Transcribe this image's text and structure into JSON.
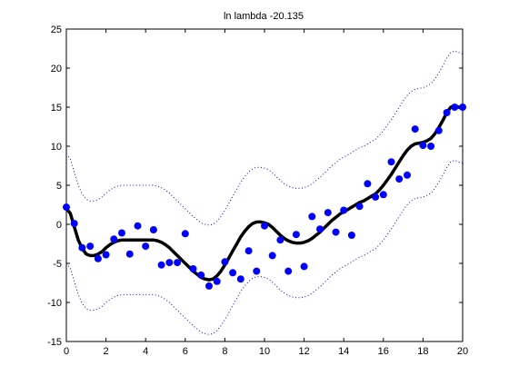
{
  "chart_data": {
    "type": "scatter",
    "title": "ln lambda -20.135",
    "xlabel": "",
    "ylabel": "",
    "xlim": [
      0,
      20
    ],
    "ylim": [
      -15,
      25
    ],
    "xticks": [
      0,
      2,
      4,
      6,
      8,
      10,
      12,
      14,
      16,
      18,
      20
    ],
    "yticks": [
      -15,
      -10,
      -5,
      0,
      5,
      10,
      15,
      20,
      25
    ],
    "grid": false,
    "legend": "none",
    "colors": {
      "points": "#0000ff",
      "fit": "#000000",
      "band": "#0000ff",
      "axes": "#000000",
      "background": "#ffffff"
    },
    "series": [
      {
        "kind": "points",
        "x": [
          0.0,
          0.4,
          0.8,
          1.2,
          1.6,
          2.0,
          2.4,
          2.8,
          3.2,
          3.6,
          4.0,
          4.4,
          4.8,
          5.2,
          5.6,
          6.0,
          6.4,
          6.8,
          7.2,
          7.6,
          8.0,
          8.4,
          8.8,
          9.2,
          9.6,
          10.0,
          10.4,
          10.8,
          11.2,
          11.6,
          12.0,
          12.4,
          12.8,
          13.2,
          13.6,
          14.0,
          14.4,
          14.8,
          15.2,
          15.6,
          16.0,
          16.4,
          16.8,
          17.2,
          17.6,
          18.0,
          18.4,
          18.8,
          19.2,
          19.6,
          20.0
        ],
        "y": [
          2.2,
          0.1,
          -3.0,
          -2.8,
          -4.4,
          -3.9,
          -1.9,
          -1.1,
          -3.8,
          -0.2,
          -2.8,
          -0.7,
          -5.2,
          -4.9,
          -4.9,
          -1.2,
          -5.7,
          -6.5,
          -7.9,
          -7.3,
          -4.8,
          -6.2,
          -7.0,
          -3.4,
          -6.0,
          -0.2,
          -4.0,
          -2.0,
          -6.0,
          -1.3,
          -5.4,
          1.0,
          -0.6,
          1.5,
          -1.0,
          1.8,
          -1.4,
          2.3,
          5.2,
          3.5,
          3.8,
          8.0,
          5.8,
          6.3,
          12.2,
          10.1,
          10.0,
          12.0,
          14.3,
          15.0,
          15.0
        ]
      },
      {
        "kind": "fit",
        "x": [
          0.0,
          0.2,
          0.4,
          0.6,
          0.8,
          1.0,
          1.2,
          1.4,
          1.6,
          1.8,
          2.0,
          2.2,
          2.4,
          2.6,
          2.8,
          3.0,
          3.2,
          3.4,
          3.6,
          3.8,
          4.0,
          4.2,
          4.4,
          4.6,
          4.8,
          5.0,
          5.2,
          5.4,
          5.6,
          5.8,
          6.0,
          6.2,
          6.4,
          6.6,
          6.8,
          7.0,
          7.2,
          7.4,
          7.6,
          7.8,
          8.0,
          8.2,
          8.4,
          8.6,
          8.8,
          9.0,
          9.2,
          9.4,
          9.6,
          9.8,
          10.0,
          10.2,
          10.4,
          10.6,
          10.8,
          11.0,
          11.2,
          11.4,
          11.6,
          11.8,
          12.0,
          12.2,
          12.4,
          12.6,
          12.8,
          13.0,
          13.2,
          13.4,
          13.6,
          13.8,
          14.0,
          14.2,
          14.4,
          14.6,
          14.8,
          15.0,
          15.2,
          15.4,
          15.6,
          15.8,
          16.0,
          16.2,
          16.4,
          16.6,
          16.8,
          17.0,
          17.2,
          17.4,
          17.6,
          17.8,
          18.0,
          18.2,
          18.4,
          18.6,
          18.8,
          19.0,
          19.2,
          19.4,
          19.6,
          19.8,
          20.0
        ],
        "y": [
          2.0,
          1.4,
          -0.3,
          -2.0,
          -3.1,
          -3.8,
          -4.0,
          -4.0,
          -3.8,
          -3.5,
          -3.0,
          -2.6,
          -2.3,
          -2.1,
          -2.0,
          -2.0,
          -2.0,
          -2.0,
          -2.0,
          -2.0,
          -2.0,
          -2.0,
          -2.0,
          -2.1,
          -2.3,
          -2.6,
          -3.0,
          -3.5,
          -4.0,
          -4.5,
          -5.0,
          -5.5,
          -6.0,
          -6.4,
          -6.8,
          -7.0,
          -7.1,
          -7.0,
          -6.6,
          -6.0,
          -5.2,
          -4.3,
          -3.4,
          -2.5,
          -1.6,
          -0.9,
          -0.3,
          0.1,
          0.3,
          0.3,
          0.2,
          0.0,
          -0.4,
          -0.9,
          -1.4,
          -1.8,
          -2.1,
          -2.3,
          -2.4,
          -2.4,
          -2.3,
          -2.1,
          -1.8,
          -1.4,
          -1.0,
          -0.5,
          0.0,
          0.5,
          0.9,
          1.3,
          1.6,
          1.9,
          2.2,
          2.5,
          2.8,
          3.0,
          3.3,
          3.6,
          3.9,
          4.4,
          5.0,
          5.7,
          6.4,
          7.2,
          8.0,
          8.8,
          9.5,
          10.0,
          10.3,
          10.4,
          10.5,
          10.7,
          11.0,
          11.6,
          12.4,
          13.3,
          14.3,
          15.0,
          15.2,
          15.0,
          14.8
        ]
      },
      {
        "kind": "upper-band",
        "x": [
          0.0,
          0.2,
          0.4,
          0.6,
          0.8,
          1.0,
          1.2,
          1.4,
          1.6,
          1.8,
          2.0,
          2.2,
          2.4,
          2.6,
          2.8,
          3.0,
          3.2,
          3.4,
          3.6,
          3.8,
          4.0,
          4.2,
          4.4,
          4.6,
          4.8,
          5.0,
          5.2,
          5.4,
          5.6,
          5.8,
          6.0,
          6.2,
          6.4,
          6.6,
          6.8,
          7.0,
          7.2,
          7.4,
          7.6,
          7.8,
          8.0,
          8.2,
          8.4,
          8.6,
          8.8,
          9.0,
          9.2,
          9.4,
          9.6,
          9.8,
          10.0,
          10.2,
          10.4,
          10.6,
          10.8,
          11.0,
          11.2,
          11.4,
          11.6,
          11.8,
          12.0,
          12.2,
          12.4,
          12.6,
          12.8,
          13.0,
          13.2,
          13.4,
          13.6,
          13.8,
          14.0,
          14.2,
          14.4,
          14.6,
          14.8,
          15.0,
          15.2,
          15.4,
          15.6,
          15.8,
          16.0,
          16.2,
          16.4,
          16.6,
          16.8,
          17.0,
          17.2,
          17.4,
          17.6,
          17.8,
          18.0,
          18.2,
          18.4,
          18.6,
          18.8,
          19.0,
          19.2,
          19.4,
          19.6,
          19.8,
          20.0
        ],
        "y": [
          9.0,
          8.4,
          6.7,
          5.0,
          3.9,
          3.2,
          3.0,
          3.0,
          3.2,
          3.5,
          4.0,
          4.4,
          4.7,
          4.9,
          5.0,
          5.0,
          5.0,
          5.0,
          5.0,
          5.0,
          5.0,
          5.0,
          5.0,
          4.9,
          4.7,
          4.4,
          4.0,
          3.5,
          3.0,
          2.5,
          2.0,
          1.5,
          1.0,
          0.6,
          0.2,
          0.0,
          -0.1,
          0.0,
          0.4,
          1.0,
          1.8,
          2.7,
          3.6,
          4.5,
          5.4,
          6.1,
          6.7,
          7.1,
          7.3,
          7.3,
          7.2,
          7.0,
          6.6,
          6.1,
          5.6,
          5.2,
          4.9,
          4.7,
          4.6,
          4.6,
          4.7,
          4.9,
          5.2,
          5.6,
          6.0,
          6.5,
          7.0,
          7.5,
          7.9,
          8.3,
          8.6,
          8.9,
          9.2,
          9.5,
          9.8,
          10.0,
          10.3,
          10.6,
          10.9,
          11.4,
          12.0,
          12.7,
          13.4,
          14.2,
          15.0,
          15.8,
          16.5,
          17.0,
          17.3,
          17.4,
          17.5,
          17.7,
          18.0,
          18.6,
          19.4,
          20.3,
          21.3,
          22.0,
          22.2,
          22.0,
          21.8
        ]
      },
      {
        "kind": "lower-band",
        "x": [
          0.0,
          0.2,
          0.4,
          0.6,
          0.8,
          1.0,
          1.2,
          1.4,
          1.6,
          1.8,
          2.0,
          2.2,
          2.4,
          2.6,
          2.8,
          3.0,
          3.2,
          3.4,
          3.6,
          3.8,
          4.0,
          4.2,
          4.4,
          4.6,
          4.8,
          5.0,
          5.2,
          5.4,
          5.6,
          5.8,
          6.0,
          6.2,
          6.4,
          6.6,
          6.8,
          7.0,
          7.2,
          7.4,
          7.6,
          7.8,
          8.0,
          8.2,
          8.4,
          8.6,
          8.8,
          9.0,
          9.2,
          9.4,
          9.6,
          9.8,
          10.0,
          10.2,
          10.4,
          10.6,
          10.8,
          11.0,
          11.2,
          11.4,
          11.6,
          11.8,
          12.0,
          12.2,
          12.4,
          12.6,
          12.8,
          13.0,
          13.2,
          13.4,
          13.6,
          13.8,
          14.0,
          14.2,
          14.4,
          14.6,
          14.8,
          15.0,
          15.2,
          15.4,
          15.6,
          15.8,
          16.0,
          16.2,
          16.4,
          16.6,
          16.8,
          17.0,
          17.2,
          17.4,
          17.6,
          17.8,
          18.0,
          18.2,
          18.4,
          18.6,
          18.8,
          19.0,
          19.2,
          19.4,
          19.6,
          19.8,
          20.0
        ],
        "y": [
          -5.0,
          -5.6,
          -7.3,
          -9.0,
          -10.1,
          -10.8,
          -11.0,
          -11.0,
          -10.8,
          -10.5,
          -10.0,
          -9.6,
          -9.3,
          -9.1,
          -9.0,
          -9.0,
          -9.0,
          -9.0,
          -9.0,
          -9.0,
          -9.0,
          -9.0,
          -9.0,
          -9.1,
          -9.3,
          -9.6,
          -10.0,
          -10.5,
          -11.0,
          -11.5,
          -12.0,
          -12.5,
          -13.0,
          -13.4,
          -13.8,
          -14.0,
          -14.1,
          -14.0,
          -13.6,
          -13.0,
          -12.2,
          -11.3,
          -10.4,
          -9.5,
          -8.6,
          -7.9,
          -7.3,
          -6.9,
          -6.7,
          -6.7,
          -6.8,
          -7.0,
          -7.4,
          -7.9,
          -8.4,
          -8.8,
          -9.1,
          -9.3,
          -9.4,
          -9.4,
          -9.3,
          -9.1,
          -8.8,
          -8.4,
          -8.0,
          -7.5,
          -7.0,
          -6.5,
          -6.1,
          -5.7,
          -5.4,
          -5.1,
          -4.8,
          -4.5,
          -4.2,
          -4.0,
          -3.7,
          -3.4,
          -3.1,
          -2.6,
          -2.0,
          -1.3,
          -0.6,
          0.2,
          1.0,
          1.8,
          2.5,
          3.0,
          3.3,
          3.4,
          3.5,
          3.7,
          4.0,
          4.6,
          5.4,
          6.3,
          7.3,
          8.0,
          8.2,
          8.0,
          7.8
        ]
      }
    ]
  }
}
